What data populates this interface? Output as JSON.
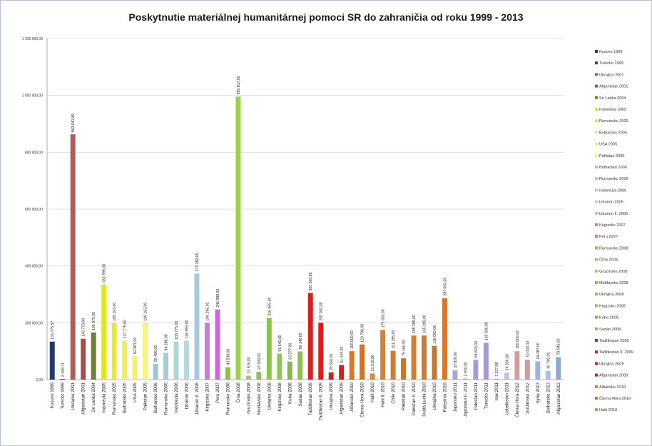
{
  "chart_data": {
    "type": "bar",
    "title": "Poskytnutie materiálnej humanitárnej pomoci SR do zahraničia od roku 1999 - 2013",
    "xlabel": "",
    "ylabel": "",
    "ylim": [
      0,
      1200000
    ],
    "yticks": [
      "0,00",
      "200 000,00",
      "400 000,00",
      "600 000,00",
      "800 000,00",
      "1 000 000,00",
      "1 200 000,00"
    ],
    "grid": true,
    "legend_position": "right",
    "categories": [
      "Kosovo 1999",
      "Turecko 1999",
      "Ukrajina 2001",
      "Afganistan 2001",
      "Sri Lanka 2004",
      "Indonézia 2005",
      "Rumunsko 2005",
      "Bulharsko 2005",
      "USA 2005",
      "Pakistan 2005",
      "Bulharsko 2006",
      "Rumunsko 2006",
      "Indonézia 2006",
      "Libanon 2006",
      "Libanon II. 2006",
      "Kirgizsko 2007",
      "Peru 2007",
      "Rumunsko 2008",
      "Čína 2008",
      "Gruzínsko 2008",
      "Moldavsko 2008",
      "Ukrajina 2008",
      "Kirgizsko 2008",
      "Kuba 2008",
      "Sudán 2008",
      "Tadžikistan 2009",
      "Tadžikistan II. 2009",
      "Ukrajina 2009",
      "Afganistan 2009",
      "Albánsko 2010",
      "Čierna Hora 2010",
      "Haiti 2010",
      "Haiti II. 2010",
      "Chile 2010",
      "Pakistan 2010",
      "Pakistan II. 2010",
      "Svätá Lucia 2010",
      "Ukrajina 2010",
      "Palestína 2010",
      "Japonsko 2011",
      "Japonsko II. 2011",
      "Pakistan 2011",
      "Turecko 2011",
      "Irak 2011",
      "Uzbekistan 2011",
      "Čierna Hora 2012",
      "Jordánsko 2012",
      "Sýria 2013",
      "Bulharsko 2013",
      "Afganistan 2013"
    ],
    "values": [
      133775.57,
      2168.71,
      863041.89,
      143773.0,
      165975.0,
      333999.0,
      199163.0,
      137775.0,
      82987.0,
      199163.0,
      55496.0,
      94288.0,
      133775.0,
      136955.0,
      373282.0,
      199296.0,
      246988.0,
      43538.0,
      995817.0,
      13916.0,
      27929.0,
      216955.0,
      91540.0,
      63577.0,
      99142.0,
      305000.0,
      200000.0,
      25560.0,
      51154.0,
      100000.0,
      123780.0,
      21910.0,
      175000.0,
      101385.0,
      75160.0,
      155205.0,
      155205.0,
      119000.0,
      287000.0,
      32820.0,
      3920.0,
      69600.0,
      130000.0,
      3527.0,
      24300.0,
      100000.0,
      70000.0,
      64287.0,
      30785.0,
      79045.0
    ],
    "value_labels": [
      "133 775,57",
      "2 168,71",
      "863 041,89",
      "143 773,00",
      "165 975,00",
      "333 999,00",
      "199 163,00",
      "137 775,00",
      "82 987,00",
      "199 163,00",
      "55 496,00",
      "94 288,00",
      "133 775,00",
      "136 955,00",
      "373 282,00",
      "199 296,00",
      "246 988,00",
      "43 538,00",
      "995 817,00",
      "13 916,00",
      "27 929,00",
      "216 955,00",
      "91 540,00",
      "63 577,00",
      "99 142,00",
      "305 000,00",
      "200 000,00",
      "25 560,00",
      "51 154,00",
      "100 000,00",
      "123 780,00",
      "21 910,00",
      "175 000,00",
      "101 385,00",
      "75 160,00",
      "155 205,00",
      "155 205,00",
      "119 000,00",
      "287 000,00",
      "32 820,00",
      "3 920,00",
      "69 600,00",
      "130 000,00",
      "3 527,00",
      "24 300,00",
      "100 000,00",
      "70 000,00",
      "64 287,00",
      "30 785,00",
      "79 045,00"
    ],
    "colors": [
      "#1f3b6e",
      "#2c4a7c",
      "#b55a57",
      "#a84c4a",
      "#6e7d3a",
      "#e4e41b",
      "#e8e83a",
      "#f0ef58",
      "#f3f16c",
      "#f6f47a",
      "#9cc5d3",
      "#a7ccd8",
      "#b0d2dc",
      "#b8d6e0",
      "#a6c8dc",
      "#c77ed8",
      "#d366e0",
      "#8fbf45",
      "#9ad24a",
      "#a8c66c",
      "#96bc55",
      "#8cc44f",
      "#94c45c",
      "#86b84c",
      "#8fc050",
      "#d81e1e",
      "#e21a1a",
      "#c82424",
      "#d11f1f",
      "#d57a2a",
      "#cf7326",
      "#e08a3a",
      "#dc7f2c",
      "#d27a2e",
      "#c9762c",
      "#d47f30",
      "#cf7a33",
      "#c8752f",
      "#d9782a",
      "#a7a6d8",
      "#b3b2dc",
      "#a59bd6",
      "#a799d2",
      "#b0b0d8",
      "#c2c2e0",
      "#d89a9a",
      "#cf9a9c",
      "#9bb5d8",
      "#a9c0e0",
      "#8da9d6"
    ],
    "legend": [
      "Kosovo 1999",
      "Turecko 1999",
      "Ukrajina 2001",
      "Afganistan 2001",
      "Sri Lanka 2004",
      "Indonézia 2005",
      "Rumunsko 2005",
      "Bulharsko 2005",
      "USA 2005",
      "Pakistan 2005",
      "Bulharsko 2006",
      "Rumunsko 2006",
      "Indonézia 2006",
      "Libanon 2006",
      "Libanon II. 2006",
      "Kirgizsko 2007",
      "Peru 2007",
      "Rumunsko 2008",
      "Čína 2008",
      "Gruzínsko 2008",
      "Moldavsko 2008",
      "Ukrajina 2008",
      "Kirgizsko 2008",
      "Kuba 2008",
      "Sudán 2008",
      "Tadžikistan 2009",
      "Tadžikistan II. 2009",
      "Ukrajina 2009",
      "Afganistan 2009",
      "Albánsko 2010",
      "Čierna Hora 2010",
      "Haiti 2010"
    ],
    "legend_colors": [
      "#1f3b6e",
      "#2c4a7c",
      "#b55a57",
      "#a84c4a",
      "#6e7d3a",
      "#e4e41b",
      "#e8e83a",
      "#f0ef58",
      "#f3f16c",
      "#f6f47a",
      "#9cc5d3",
      "#a7ccd8",
      "#b0d2dc",
      "#b8d6e0",
      "#a6c8dc",
      "#c77ed8",
      "#d366e0",
      "#8fbf45",
      "#9ad24a",
      "#a8c66c",
      "#96bc55",
      "#8cc44f",
      "#94c45c",
      "#86b84c",
      "#8fc050",
      "#d81e1e",
      "#e21a1a",
      "#c82424",
      "#d11f1f",
      "#d57a2a",
      "#cf7326",
      "#e08a3a"
    ]
  }
}
